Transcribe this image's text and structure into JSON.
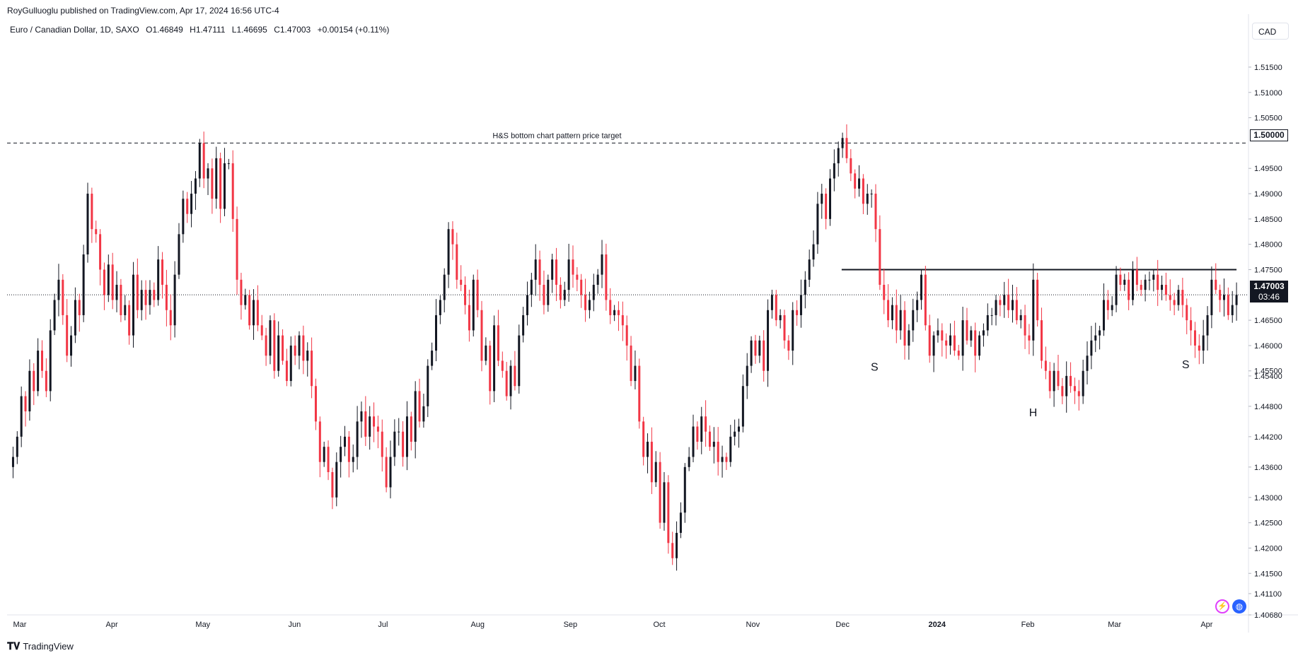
{
  "header": {
    "publisher_line": "RoyGulluoglu published on TradingView.com, Apr 17, 2024 16:56 UTC-4",
    "symbol": "Euro / Canadian Dollar, 1D, SAXO",
    "open": "O1.46849",
    "high": "H1.47111",
    "low": "L1.46695",
    "close": "C1.47003",
    "change": "+0.00154 (+0.11%)"
  },
  "currency_button": "CAD",
  "footer": {
    "brand": "TradingView"
  },
  "price_tags": {
    "target": "1.50000",
    "last": "1.47003",
    "countdown": "03:46"
  },
  "colors": {
    "up": "#131722",
    "down": "#f23645",
    "line": "#131722",
    "grid": "#f0f3fa"
  },
  "icons": [
    "lightning-icon",
    "globe-icon"
  ],
  "chart_data": {
    "type": "candlestick",
    "title": "Euro / Canadian Dollar, 1D, SAXO",
    "ylabel": "CAD",
    "ylim": [
      1.4068,
      1.5196
    ],
    "y_ticks": [
      "1.51500",
      "1.51000",
      "1.50500",
      "1.49500",
      "1.49000",
      "1.48500",
      "1.48000",
      "1.47500",
      "1.46500",
      "1.46000",
      "1.45500",
      "1.45400",
      "1.44800",
      "1.44200",
      "1.43600",
      "1.43000",
      "1.42500",
      "1.42000",
      "1.41500",
      "1.41100",
      "1.40680"
    ],
    "x_ticks": [
      {
        "label": "Mar",
        "day": 0
      },
      {
        "label": "Apr",
        "day": 31
      },
      {
        "label": "May",
        "day": 61
      },
      {
        "label": "Jun",
        "day": 92
      },
      {
        "label": "Jul",
        "day": 122
      },
      {
        "label": "Aug",
        "day": 153
      },
      {
        "label": "Sep",
        "day": 184
      },
      {
        "label": "Oct",
        "day": 214
      },
      {
        "label": "Nov",
        "day": 245
      },
      {
        "label": "Dec",
        "day": 275
      },
      {
        "label": "2024",
        "day": 306,
        "bold": true
      },
      {
        "label": "Feb",
        "day": 337
      },
      {
        "label": "Mar",
        "day": 366
      },
      {
        "label": "Apr",
        "day": 397
      }
    ],
    "x_range_days": [
      -2,
      413
    ],
    "closes": [
      1.438,
      1.442,
      1.45,
      1.447,
      1.455,
      1.451,
      1.459,
      1.455,
      1.451,
      1.463,
      1.469,
      1.473,
      1.466,
      1.458,
      1.462,
      1.469,
      1.466,
      1.478,
      1.49,
      1.483,
      1.482,
      1.475,
      1.47,
      1.476,
      1.469,
      1.472,
      1.466,
      1.468,
      1.462,
      1.474,
      1.467,
      1.471,
      1.468,
      1.471,
      1.469,
      1.477,
      1.472,
      1.467,
      1.464,
      1.474,
      1.482,
      1.489,
      1.486,
      1.49,
      1.493,
      1.5,
      1.493,
      1.495,
      1.489,
      1.497,
      1.487,
      1.496,
      1.496,
      1.485,
      1.473,
      1.468,
      1.47,
      1.464,
      1.469,
      1.464,
      1.462,
      1.458,
      1.465,
      1.455,
      1.462,
      1.457,
      1.453,
      1.46,
      1.458,
      1.462,
      1.457,
      1.459,
      1.452,
      1.445,
      1.437,
      1.44,
      1.435,
      1.43,
      1.437,
      1.44,
      1.442,
      1.437,
      1.438,
      1.445,
      1.447,
      1.442,
      1.446,
      1.444,
      1.443,
      1.438,
      1.432,
      1.438,
      1.443,
      1.443,
      1.438,
      1.446,
      1.441,
      1.451,
      1.445,
      1.448,
      1.456,
      1.459,
      1.466,
      1.469,
      1.474,
      1.483,
      1.48,
      1.473,
      1.472,
      1.468,
      1.463,
      1.473,
      1.467,
      1.457,
      1.46,
      1.451,
      1.464,
      1.457,
      1.455,
      1.45,
      1.456,
      1.452,
      1.462,
      1.466,
      1.47,
      1.473,
      1.477,
      1.472,
      1.468,
      1.473,
      1.477,
      1.472,
      1.469,
      1.471,
      1.477,
      1.474,
      1.473,
      1.47,
      1.467,
      1.469,
      1.472,
      1.474,
      1.478,
      1.469,
      1.466,
      1.467,
      1.466,
      1.464,
      1.46,
      1.453,
      1.456,
      1.445,
      1.438,
      1.441,
      1.433,
      1.437,
      1.425,
      1.433,
      1.421,
      1.418,
      1.423,
      1.427,
      1.436,
      1.438,
      1.444,
      1.441,
      1.446,
      1.443,
      1.44,
      1.441,
      1.437,
      1.438,
      1.437,
      1.442,
      1.443,
      1.444,
      1.452,
      1.456,
      1.461,
      1.458,
      1.461,
      1.455,
      1.467,
      1.47,
      1.465,
      1.466,
      1.461,
      1.459,
      1.467,
      1.466,
      1.47,
      1.473,
      1.477,
      1.48,
      1.488,
      1.49,
      1.485,
      1.493,
      1.496,
      1.499,
      1.501,
      1.497,
      1.494,
      1.491,
      1.493,
      1.488,
      1.49,
      1.49,
      1.483,
      1.472,
      1.469,
      1.465,
      1.468,
      1.463,
      1.467,
      1.46,
      1.463,
      1.467,
      1.469,
      1.474,
      1.464,
      1.458,
      1.462,
      1.463,
      1.461,
      1.46,
      1.462,
      1.459,
      1.458,
      1.465,
      1.461,
      1.463,
      1.458,
      1.462,
      1.463,
      1.466,
      1.466,
      1.469,
      1.468,
      1.47,
      1.467,
      1.469,
      1.465,
      1.466,
      1.462,
      1.461,
      1.473,
      1.465,
      1.457,
      1.455,
      1.451,
      1.455,
      1.452,
      1.45,
      1.454,
      1.452,
      1.451,
      1.45,
      1.455,
      1.458,
      1.461,
      1.462,
      1.463,
      1.469,
      1.467,
      1.468,
      1.474,
      1.472,
      1.473,
      1.469,
      1.475,
      1.472,
      1.471,
      1.473,
      1.473,
      1.474,
      1.471,
      1.472,
      1.47,
      1.469,
      1.468,
      1.471,
      1.468,
      1.465,
      1.463,
      1.46,
      1.459,
      1.462,
      1.466,
      1.473,
      1.471,
      1.469,
      1.47,
      1.466,
      1.468,
      1.47
    ],
    "horizontal_lines": [
      {
        "price": 1.5,
        "style": "dashed",
        "label": "H&S bottom chart pattern price target"
      },
      {
        "price": 1.475,
        "style": "solid",
        "from_day": 277,
        "to_day": 409
      },
      {
        "price": 1.47003,
        "style": "dotted"
      }
    ],
    "annotations": [
      {
        "text": "S",
        "day": 288,
        "price": 1.455
      },
      {
        "text": "H",
        "day": 341,
        "price": 1.446
      },
      {
        "text": "S",
        "day": 392,
        "price": 1.4555
      }
    ]
  }
}
